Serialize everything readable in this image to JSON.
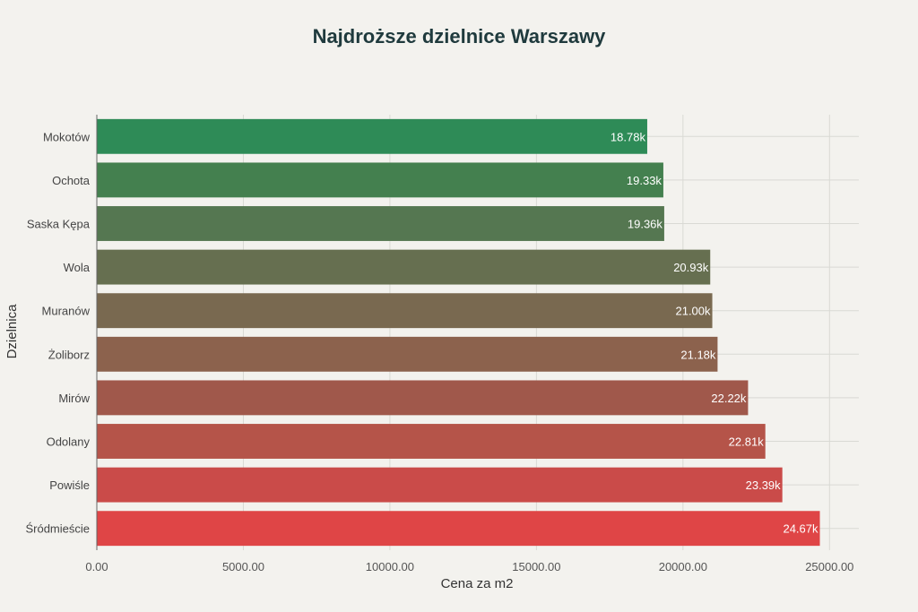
{
  "chart_data": {
    "type": "bar",
    "orientation": "horizontal",
    "title": "Najdroższe dzielnice Warszawy",
    "xlabel": "Cena za m2",
    "ylabel": "Dzielnica",
    "xlim": [
      0,
      26000
    ],
    "xticks": [
      0,
      5000,
      10000,
      15000,
      20000,
      25000
    ],
    "xtick_labels": [
      "0.00",
      "5000.00",
      "10000.00",
      "15000.00",
      "20000.00",
      "25000.00"
    ],
    "grid": true,
    "categories": [
      "Mokotów",
      "Ochota",
      "Saska Kępa",
      "Wola",
      "Muranów",
      "Żoliborz",
      "Mirów",
      "Odolany",
      "Powiśle",
      "Śródmieście"
    ],
    "values": [
      18780,
      19330,
      19360,
      20930,
      21000,
      21180,
      22220,
      22810,
      23390,
      24670
    ],
    "value_labels": [
      "18.78k",
      "19.33k",
      "19.36k",
      "20.93k",
      "21.00k",
      "21.18k",
      "22.22k",
      "22.81k",
      "23.39k",
      "24.67k"
    ],
    "colors": [
      "#2e8b57",
      "#44804f",
      "#557751",
      "#666f50",
      "#796950",
      "#8c624d",
      "#a0584b",
      "#b55449",
      "#ca4b49",
      "#df4546"
    ]
  }
}
